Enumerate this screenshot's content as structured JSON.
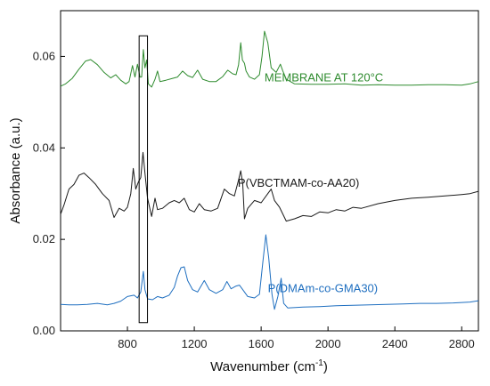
{
  "chart_data": {
    "type": "line",
    "title": "",
    "xlabel": "Wavenumber (cm",
    "xlabel_sup": "-1",
    "xlabel_tail": ")",
    "ylabel": "Absorbance (a.u.)",
    "xlim": [
      400,
      2900
    ],
    "ylim": [
      0.0,
      0.07
    ],
    "x_ticks": [
      800,
      1200,
      1600,
      2000,
      2400,
      2800
    ],
    "x_tick_labels": [
      "800",
      "1200",
      "1600",
      "2000",
      "2400",
      "2800"
    ],
    "y_ticks": [
      0.0,
      0.02,
      0.04,
      0.06
    ],
    "y_tick_labels": [
      "0.00",
      "0.02",
      "0.04",
      "0.06"
    ],
    "grid": false,
    "highlight_box": {
      "x_range": [
        870,
        920
      ],
      "y_range": [
        0.0018,
        0.0645
      ]
    },
    "series": [
      {
        "name": "MEMBRANE AT 120°C",
        "color": "#2e8b2e",
        "label_anchor": [
          1620,
          0.0545
        ],
        "points": [
          [
            400,
            0.0535
          ],
          [
            430,
            0.054
          ],
          [
            470,
            0.0552
          ],
          [
            510,
            0.0572
          ],
          [
            550,
            0.059
          ],
          [
            580,
            0.0593
          ],
          [
            620,
            0.0582
          ],
          [
            660,
            0.0565
          ],
          [
            700,
            0.0553
          ],
          [
            730,
            0.056
          ],
          [
            760,
            0.0548
          ],
          [
            790,
            0.054
          ],
          [
            810,
            0.0545
          ],
          [
            830,
            0.058
          ],
          [
            845,
            0.0555
          ],
          [
            860,
            0.0583
          ],
          [
            875,
            0.0555
          ],
          [
            885,
            0.0555
          ],
          [
            895,
            0.0615
          ],
          [
            905,
            0.0575
          ],
          [
            915,
            0.0592
          ],
          [
            925,
            0.054
          ],
          [
            945,
            0.0533
          ],
          [
            965,
            0.055
          ],
          [
            980,
            0.0568
          ],
          [
            995,
            0.0545
          ],
          [
            1030,
            0.0548
          ],
          [
            1070,
            0.0552
          ],
          [
            1100,
            0.0555
          ],
          [
            1130,
            0.0568
          ],
          [
            1160,
            0.0558
          ],
          [
            1190,
            0.0554
          ],
          [
            1220,
            0.057
          ],
          [
            1250,
            0.055
          ],
          [
            1290,
            0.0545
          ],
          [
            1330,
            0.0545
          ],
          [
            1370,
            0.0556
          ],
          [
            1400,
            0.057
          ],
          [
            1430,
            0.0562
          ],
          [
            1450,
            0.056
          ],
          [
            1465,
            0.0582
          ],
          [
            1478,
            0.063
          ],
          [
            1488,
            0.0592
          ],
          [
            1500,
            0.0585
          ],
          [
            1510,
            0.0568
          ],
          [
            1530,
            0.0555
          ],
          [
            1560,
            0.055
          ],
          [
            1590,
            0.056
          ],
          [
            1605,
            0.06
          ],
          [
            1620,
            0.0655
          ],
          [
            1640,
            0.063
          ],
          [
            1660,
            0.0575
          ],
          [
            1690,
            0.0565
          ],
          [
            1715,
            0.0583
          ],
          [
            1730,
            0.0568
          ],
          [
            1750,
            0.055
          ],
          [
            1800,
            0.054
          ],
          [
            1900,
            0.0539
          ],
          [
            2000,
            0.0539
          ],
          [
            2100,
            0.054
          ],
          [
            2200,
            0.0537
          ],
          [
            2300,
            0.0538
          ],
          [
            2400,
            0.0537
          ],
          [
            2500,
            0.0537
          ],
          [
            2600,
            0.0538
          ],
          [
            2700,
            0.0538
          ],
          [
            2800,
            0.0537
          ],
          [
            2850,
            0.054
          ],
          [
            2900,
            0.0545
          ]
        ]
      },
      {
        "name": "P(VBCTMAM-co-AA20)",
        "color": "#1a1a1a",
        "label_anchor": [
          1460,
          0.0315
        ],
        "points": [
          [
            400,
            0.0255
          ],
          [
            420,
            0.0275
          ],
          [
            450,
            0.031
          ],
          [
            480,
            0.032
          ],
          [
            510,
            0.034
          ],
          [
            540,
            0.0345
          ],
          [
            570,
            0.0335
          ],
          [
            610,
            0.032
          ],
          [
            650,
            0.03
          ],
          [
            690,
            0.0285
          ],
          [
            720,
            0.0248
          ],
          [
            750,
            0.0268
          ],
          [
            780,
            0.0262
          ],
          [
            800,
            0.027
          ],
          [
            820,
            0.03
          ],
          [
            835,
            0.0355
          ],
          [
            850,
            0.031
          ],
          [
            865,
            0.0325
          ],
          [
            880,
            0.0335
          ],
          [
            893,
            0.039
          ],
          [
            905,
            0.0345
          ],
          [
            920,
            0.029
          ],
          [
            945,
            0.025
          ],
          [
            965,
            0.029
          ],
          [
            980,
            0.0265
          ],
          [
            1010,
            0.0268
          ],
          [
            1050,
            0.028
          ],
          [
            1080,
            0.0285
          ],
          [
            1110,
            0.028
          ],
          [
            1140,
            0.029
          ],
          [
            1170,
            0.0265
          ],
          [
            1200,
            0.026
          ],
          [
            1230,
            0.0278
          ],
          [
            1260,
            0.0265
          ],
          [
            1300,
            0.0262
          ],
          [
            1340,
            0.0268
          ],
          [
            1380,
            0.031
          ],
          [
            1410,
            0.03
          ],
          [
            1440,
            0.0295
          ],
          [
            1465,
            0.033
          ],
          [
            1478,
            0.035
          ],
          [
            1490,
            0.032
          ],
          [
            1500,
            0.0245
          ],
          [
            1520,
            0.0268
          ],
          [
            1560,
            0.0285
          ],
          [
            1600,
            0.028
          ],
          [
            1640,
            0.03
          ],
          [
            1660,
            0.031
          ],
          [
            1680,
            0.0285
          ],
          [
            1710,
            0.027
          ],
          [
            1750,
            0.024
          ],
          [
            1800,
            0.0245
          ],
          [
            1850,
            0.0252
          ],
          [
            1900,
            0.025
          ],
          [
            1950,
            0.026
          ],
          [
            2000,
            0.0258
          ],
          [
            2050,
            0.0265
          ],
          [
            2100,
            0.0262
          ],
          [
            2150,
            0.027
          ],
          [
            2200,
            0.0268
          ],
          [
            2300,
            0.0278
          ],
          [
            2400,
            0.0285
          ],
          [
            2500,
            0.029
          ],
          [
            2600,
            0.0292
          ],
          [
            2700,
            0.0295
          ],
          [
            2800,
            0.0298
          ],
          [
            2850,
            0.03
          ],
          [
            2900,
            0.0305
          ]
        ]
      },
      {
        "name": "P(DMAm-co-GMA30)",
        "color": "#1f6fc0",
        "label_anchor": [
          1640,
          0.0085
        ],
        "points": [
          [
            400,
            0.0058
          ],
          [
            450,
            0.0057
          ],
          [
            500,
            0.0057
          ],
          [
            560,
            0.0058
          ],
          [
            620,
            0.006
          ],
          [
            680,
            0.0057
          ],
          [
            720,
            0.006
          ],
          [
            760,
            0.0065
          ],
          [
            800,
            0.0075
          ],
          [
            840,
            0.0078
          ],
          [
            860,
            0.0072
          ],
          [
            880,
            0.0085
          ],
          [
            895,
            0.013
          ],
          [
            905,
            0.009
          ],
          [
            920,
            0.007
          ],
          [
            950,
            0.0068
          ],
          [
            980,
            0.0075
          ],
          [
            1010,
            0.0072
          ],
          [
            1050,
            0.0078
          ],
          [
            1080,
            0.0095
          ],
          [
            1100,
            0.012
          ],
          [
            1120,
            0.0138
          ],
          [
            1140,
            0.014
          ],
          [
            1160,
            0.011
          ],
          [
            1190,
            0.009
          ],
          [
            1220,
            0.0085
          ],
          [
            1260,
            0.011
          ],
          [
            1290,
            0.009
          ],
          [
            1330,
            0.0082
          ],
          [
            1370,
            0.009
          ],
          [
            1395,
            0.0108
          ],
          [
            1420,
            0.0092
          ],
          [
            1450,
            0.0098
          ],
          [
            1470,
            0.01
          ],
          [
            1490,
            0.009
          ],
          [
            1520,
            0.0075
          ],
          [
            1560,
            0.0072
          ],
          [
            1590,
            0.008
          ],
          [
            1610,
            0.015
          ],
          [
            1628,
            0.021
          ],
          [
            1645,
            0.016
          ],
          [
            1665,
            0.008
          ],
          [
            1680,
            0.0047
          ],
          [
            1700,
            0.0075
          ],
          [
            1720,
            0.0115
          ],
          [
            1735,
            0.006
          ],
          [
            1760,
            0.005
          ],
          [
            1850,
            0.0052
          ],
          [
            1950,
            0.0053
          ],
          [
            2050,
            0.0055
          ],
          [
            2150,
            0.0056
          ],
          [
            2250,
            0.0057
          ],
          [
            2350,
            0.0058
          ],
          [
            2450,
            0.0059
          ],
          [
            2550,
            0.006
          ],
          [
            2650,
            0.006
          ],
          [
            2750,
            0.0061
          ],
          [
            2850,
            0.0063
          ],
          [
            2900,
            0.0066
          ]
        ]
      }
    ]
  }
}
